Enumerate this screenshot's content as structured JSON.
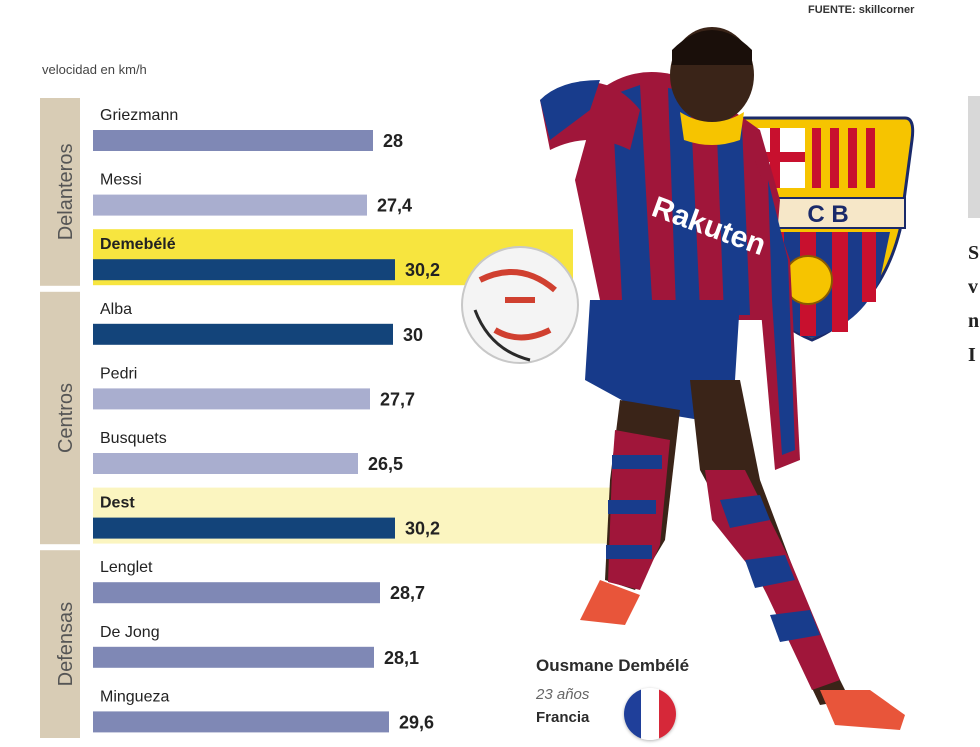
{
  "source": "FUENTE: skillcorner",
  "unit_label": "velocidad en km/h",
  "player": {
    "name": "Ousmane Dembélé",
    "age": "23 años",
    "country": "Francia",
    "shirt_sponsor": "Rakuten",
    "crest_letters": "C B"
  },
  "cropped_side_text": [
    "S",
    "v",
    "n",
    "I"
  ],
  "colors": {
    "group_band": "#d8ccb5",
    "bar_light": "#a9aecf",
    "bar_medium": "#7f88b5",
    "bar_dark": "#13447a",
    "highlight": "#f7e53f",
    "highlight_soft": "#fbf5c0"
  },
  "chart_data": {
    "type": "bar",
    "orientation": "horizontal",
    "categories": [
      "Griezmann",
      "Messi",
      "Demebélé",
      "Alba",
      "Pedri",
      "Busquets",
      "Dest",
      "Lenglet",
      "De Jong",
      "Mingueza"
    ],
    "values": [
      28,
      27.4,
      30.2,
      30,
      27.7,
      26.5,
      30.2,
      28.7,
      28.1,
      29.6
    ],
    "value_labels": [
      "28",
      "27,4",
      "30,2",
      "30",
      "27,7",
      "26,5",
      "30,2",
      "28,7",
      "28,1",
      "29,6"
    ],
    "groups": [
      {
        "name": "Delanteros",
        "members": [
          "Griezmann",
          "Messi",
          "Demebélé"
        ]
      },
      {
        "name": "Centros",
        "members": [
          "Alba",
          "Pedri",
          "Busquets",
          "Dest"
        ]
      },
      {
        "name": "Defensas",
        "members": [
          "Lenglet",
          "De Jong",
          "Mingueza"
        ]
      }
    ],
    "highlighted": [
      "Demebélé",
      "Dest"
    ],
    "xlim": [
      0,
      35
    ],
    "title": "",
    "xlabel": "velocidad en km/h",
    "ylabel": ""
  }
}
